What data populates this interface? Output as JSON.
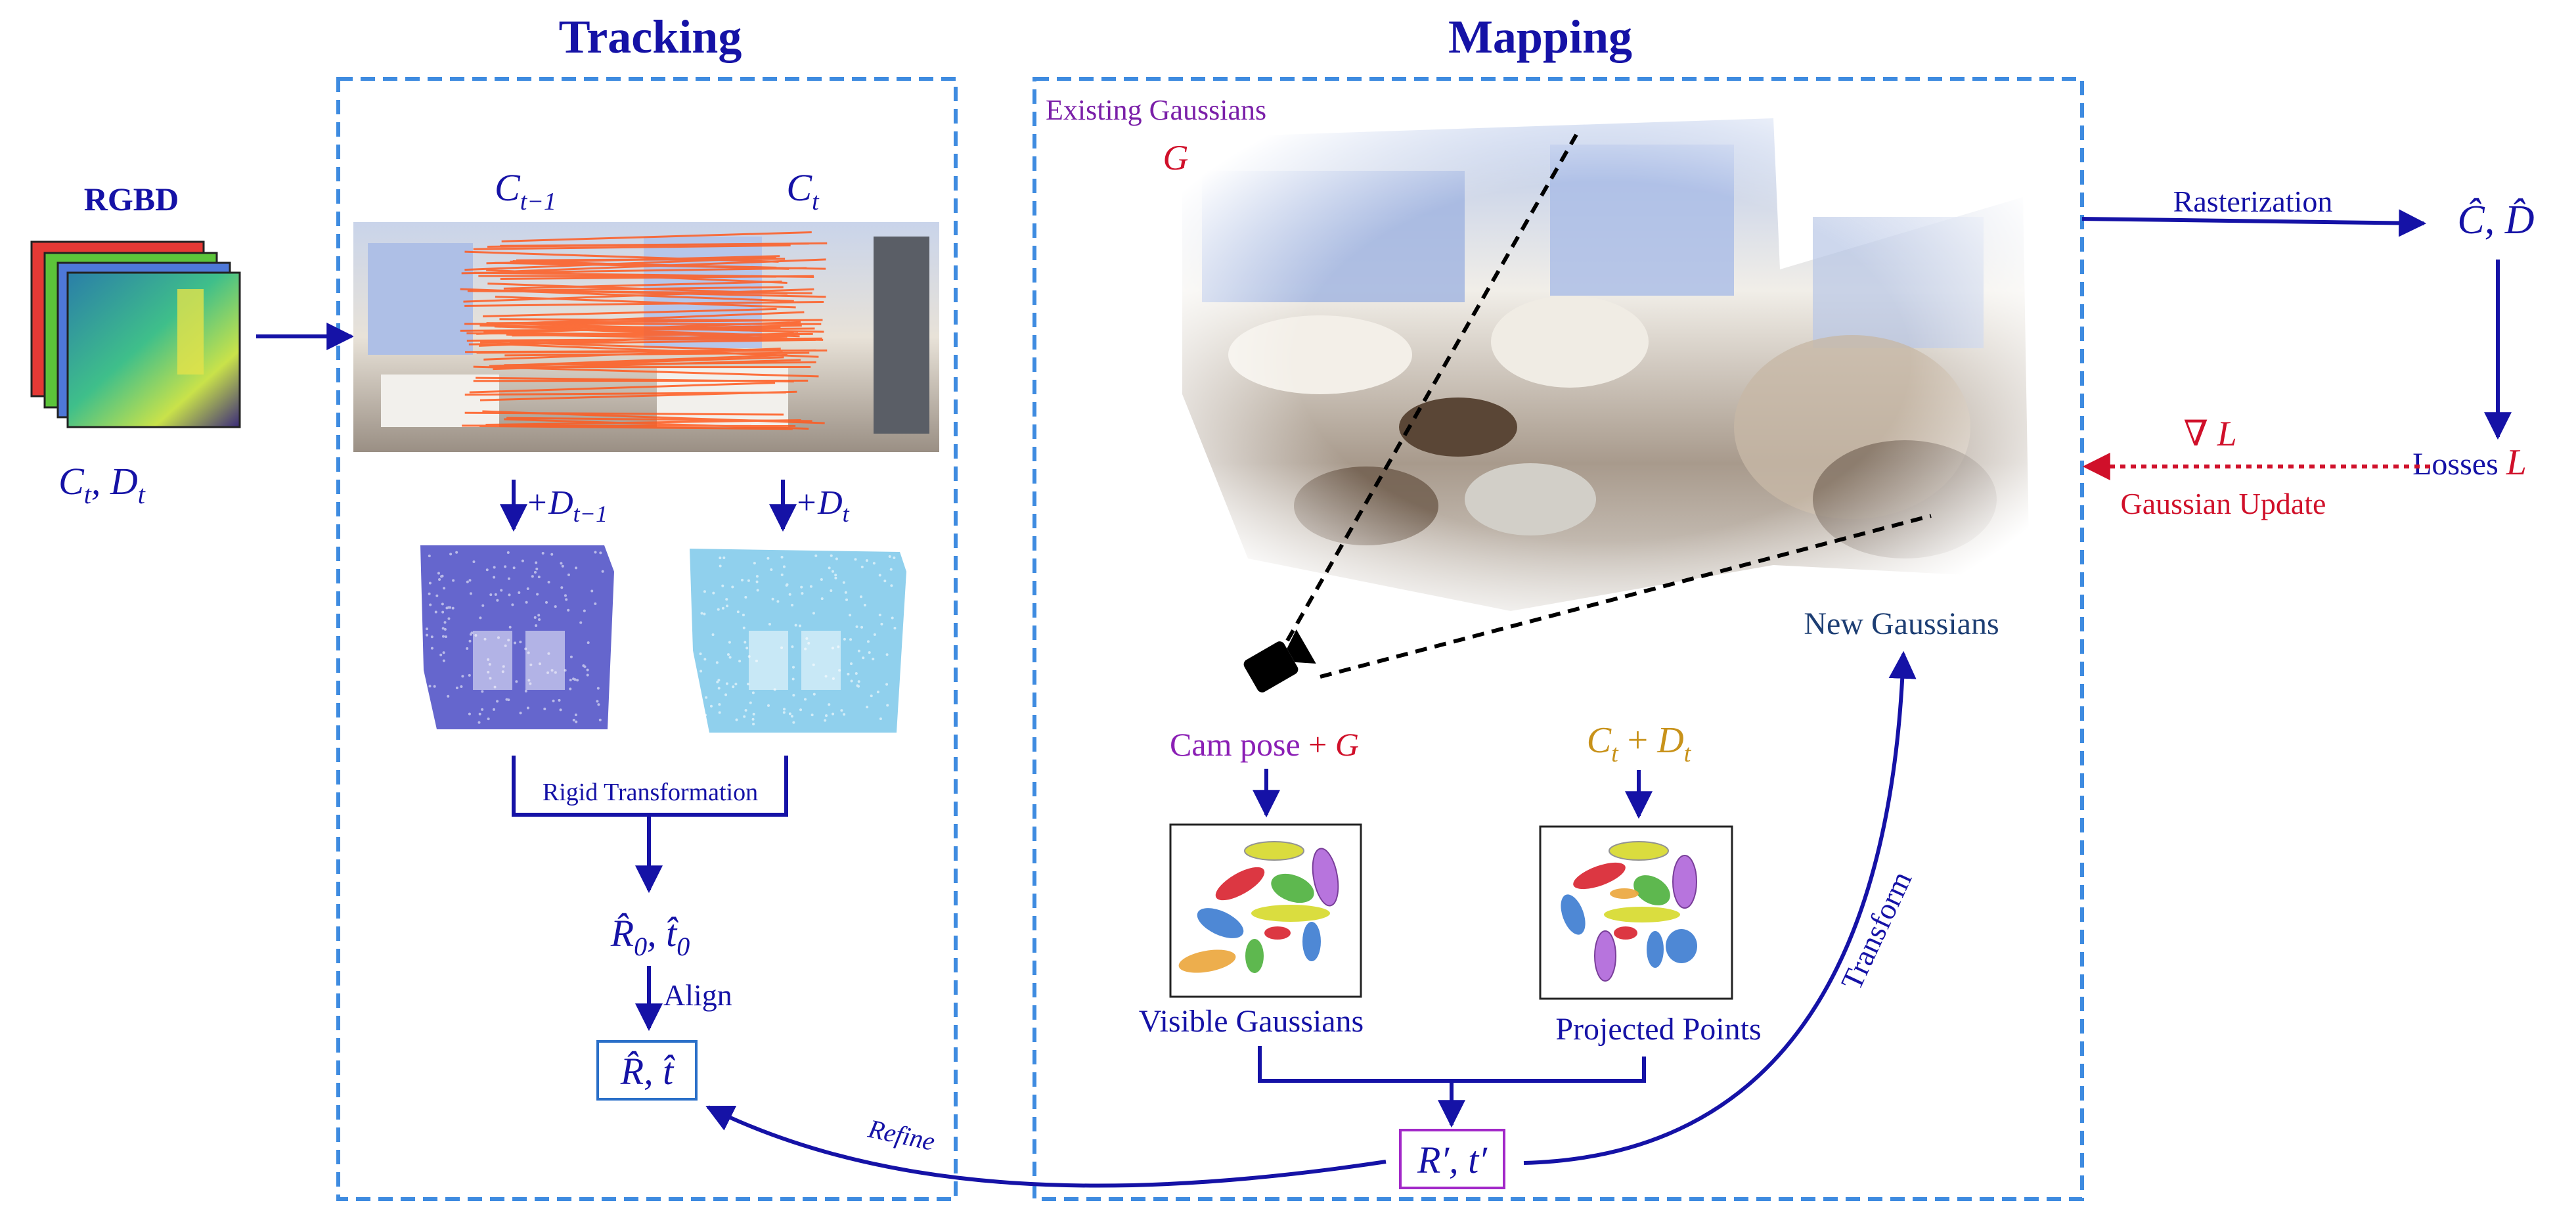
{
  "sections": {
    "tracking_title": "Tracking",
    "mapping_title": "Mapping"
  },
  "input": {
    "title": "RGBD",
    "label": "C_t, D_t"
  },
  "tracking": {
    "prev_frame_label": "C_{t−1}",
    "curr_frame_label": "C_t",
    "plus_prev_depth": "+D_{t−1}",
    "plus_curr_depth": "+D_t",
    "rigid_transformation": "Rigid Transformation",
    "initial_estimate": "R̂_0, t̂_0",
    "align": "Align",
    "refined_estimate": "R̂, t̂",
    "refine": "Refine"
  },
  "mapping": {
    "existing_gaussians": "Existing Gaussians",
    "g_symbol": "G",
    "new_gaussians": "New Gaussians",
    "cam_pose": "Cam pose",
    "plus": "+",
    "ct_dt": "C_t + D_t",
    "visible_gaussians": "Visible Gaussians",
    "projected_points": "Projected Points",
    "r_prime_t_prime": "R′, t′",
    "transform": "Transform"
  },
  "output": {
    "rasterization": "Rasterization",
    "rendered": "Ĉ, D̂",
    "losses": "Losses",
    "loss_symbol": "L",
    "gradient": "∇ L",
    "gaussian_update": "Gaussian Update"
  },
  "colors": {
    "navy": "#1512A6",
    "dashed_box": "#3E8BE0",
    "red": "#D0102A",
    "purple": "#8B1FB5",
    "gold": "#C8921A",
    "teal_text": "#1D3E73"
  }
}
